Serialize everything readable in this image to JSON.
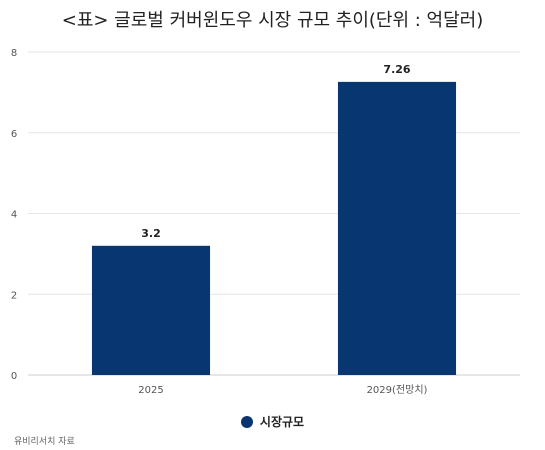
{
  "title": "<표> 글로벌 커버윈도우 시장 규모 추이(단위 : 억달러)",
  "source": "유비리서치 자료",
  "colors": {
    "bar": "#083670",
    "grid": "#e6e6e6",
    "axis": "#cccccc",
    "text": "#555555"
  },
  "legend": {
    "label": "시장규모"
  },
  "chart_data": {
    "type": "bar",
    "title": "<표> 글로벌 커버윈도우 시장 규모 추이(단위 : 억달러)",
    "categories": [
      "2025",
      "2029(전망치)"
    ],
    "series": [
      {
        "name": "시장규모",
        "values": [
          3.2,
          7.26
        ]
      }
    ],
    "value_labels": [
      "3.2",
      "7.26"
    ],
    "yticks": [
      "0",
      "2",
      "4",
      "6",
      "8"
    ],
    "ylim": [
      0,
      8
    ],
    "grid": true,
    "legend_position": "bottom"
  }
}
